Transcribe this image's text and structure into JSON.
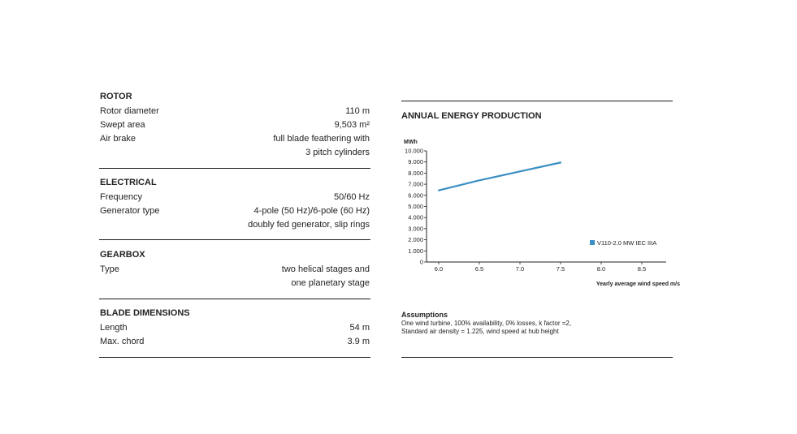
{
  "rotor": {
    "heading": "ROTOR",
    "rows": [
      {
        "label": "Rotor diameter",
        "value": "110 m"
      },
      {
        "label": "Swept area",
        "value": "9,503 m²"
      },
      {
        "label": "Air brake",
        "value": "full blade feathering with"
      },
      {
        "label": "",
        "value": "3 pitch cylinders"
      }
    ]
  },
  "electrical": {
    "heading": "ELECTRICAL",
    "rows": [
      {
        "label": "Frequency",
        "value": "50/60 Hz"
      },
      {
        "label": "Generator type",
        "value": "4-pole (50 Hz)/6-pole (60 Hz)"
      },
      {
        "label": "",
        "value": "doubly fed generator, slip rings"
      }
    ]
  },
  "gearbox": {
    "heading": "GEARBOX",
    "rows": [
      {
        "label": "Type",
        "value": "two helical stages and"
      },
      {
        "label": "",
        "value": "one planetary stage"
      }
    ]
  },
  "blade": {
    "heading": "BLADE DIMENSIONS",
    "rows": [
      {
        "label": "Length",
        "value": "54 m"
      },
      {
        "label": "Max. chord",
        "value": "3.9 m"
      }
    ]
  },
  "aep": {
    "title": "ANNUAL ENERGY PRODUCTION"
  },
  "chart_data": {
    "type": "line",
    "title": "ANNUAL ENERGY PRODUCTION",
    "ylabel": "MWh",
    "xlabel": "Yearly average wind speed m/s",
    "x_ticks": [
      "6.0",
      "6.5",
      "7.0",
      "7.5",
      "8.0",
      "8.5"
    ],
    "y_ticks": [
      "0",
      "1.000",
      "2.000",
      "3.000",
      "4.000",
      "5.000",
      "6.000",
      "7.000",
      "8.000",
      "9.000",
      "10.000"
    ],
    "xlim": [
      6.0,
      8.5
    ],
    "ylim": [
      0,
      10000
    ],
    "series": [
      {
        "name": "V110-2.0 MW IEC IIIA",
        "color": "#3a8fc4",
        "x": [
          6.0,
          6.5,
          7.0,
          7.5
        ],
        "y": [
          6450,
          7350,
          8150,
          8950
        ]
      }
    ],
    "legend_position": "right"
  },
  "assumptions": {
    "title": "Assumptions",
    "line1": "One wind turbine, 100% availability, 0% losses, k factor =2,",
    "line2": "Standard air density = 1.225, wind speed at hub height"
  }
}
